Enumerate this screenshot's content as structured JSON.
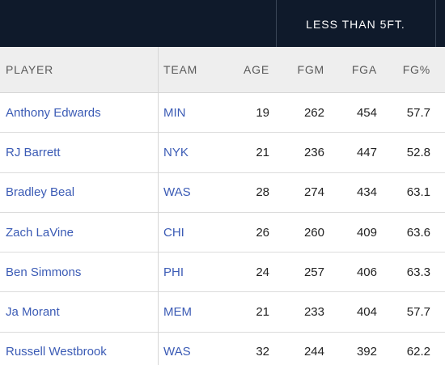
{
  "header": {
    "group_label": "LESS THAN 5FT."
  },
  "columns": {
    "player": "PLAYER",
    "team": "TEAM",
    "age": "AGE",
    "fgm": "FGM",
    "fga": "FGA",
    "fgp": "FG%"
  },
  "rows": [
    {
      "player": "Anthony Edwards",
      "team": "MIN",
      "age": "19",
      "fgm": "262",
      "fga": "454",
      "fgp": "57.7"
    },
    {
      "player": "RJ Barrett",
      "team": "NYK",
      "age": "21",
      "fgm": "236",
      "fga": "447",
      "fgp": "52.8"
    },
    {
      "player": "Bradley Beal",
      "team": "WAS",
      "age": "28",
      "fgm": "274",
      "fga": "434",
      "fgp": "63.1"
    },
    {
      "player": "Zach LaVine",
      "team": "CHI",
      "age": "26",
      "fgm": "260",
      "fga": "409",
      "fgp": "63.6"
    },
    {
      "player": "Ben Simmons",
      "team": "PHI",
      "age": "24",
      "fgm": "257",
      "fga": "406",
      "fgp": "63.3"
    },
    {
      "player": "Ja Morant",
      "team": "MEM",
      "age": "21",
      "fgm": "233",
      "fga": "404",
      "fgp": "57.7"
    },
    {
      "player": "Russell Westbrook",
      "team": "WAS",
      "age": "32",
      "fgm": "244",
      "fga": "392",
      "fgp": "62.2"
    }
  ],
  "colors": {
    "header_bg": "#0f1a2b",
    "link": "#3b5bb5",
    "column_header_bg": "#eeeeee"
  }
}
